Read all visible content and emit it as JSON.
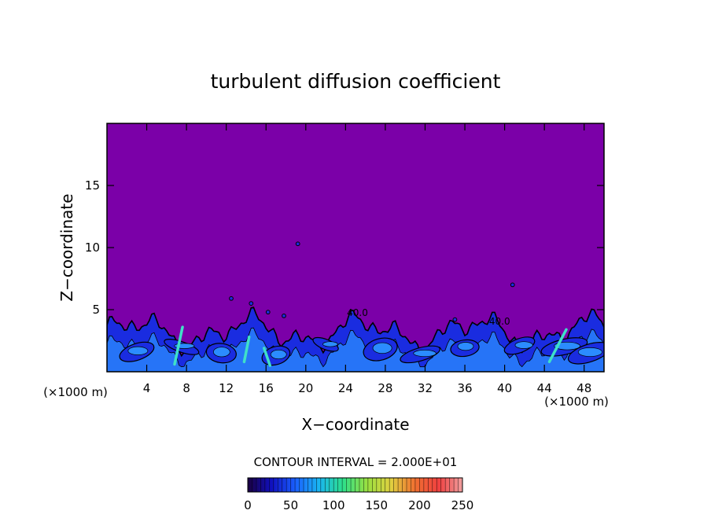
{
  "chart_data": {
    "type": "heatmap",
    "title": "turbulent diffusion coefficient",
    "xlabel": "X−coordinate",
    "ylabel": "Z−coordinate",
    "x_unit_left": "(×1000 m)",
    "x_unit_right": "(×1000 m)",
    "xlim": [
      0,
      50
    ],
    "ylim": [
      0,
      20
    ],
    "x_ticks": [
      4,
      8,
      12,
      16,
      20,
      24,
      28,
      32,
      36,
      40,
      44,
      48
    ],
    "y_ticks": [
      5,
      10,
      15
    ],
    "background_value": 0,
    "background_color": "#7b00a8",
    "contour_interval_label": "CONTOUR INTERVAL = 2.000E+01",
    "contour_interval": 20,
    "contour_labels": [
      {
        "text": "40.0",
        "x": 25.2,
        "y": 4.5
      },
      {
        "text": "40.0",
        "x": 39.5,
        "y": 3.8
      }
    ],
    "colorbar": {
      "min": 0,
      "max": 250,
      "ticks": [
        0,
        50,
        100,
        150,
        200,
        250
      ],
      "colors": [
        "#1a0040",
        "#1010c0",
        "#1a60ff",
        "#19b6f0",
        "#2ee08a",
        "#9ae040",
        "#e0d040",
        "#f07030",
        "#f04040",
        "#f0a0a0"
      ]
    },
    "colors": {
      "low": "#1a2ce0",
      "mid": "#2b8cff",
      "high": "#3fe0c8",
      "contour": "#000000"
    }
  }
}
